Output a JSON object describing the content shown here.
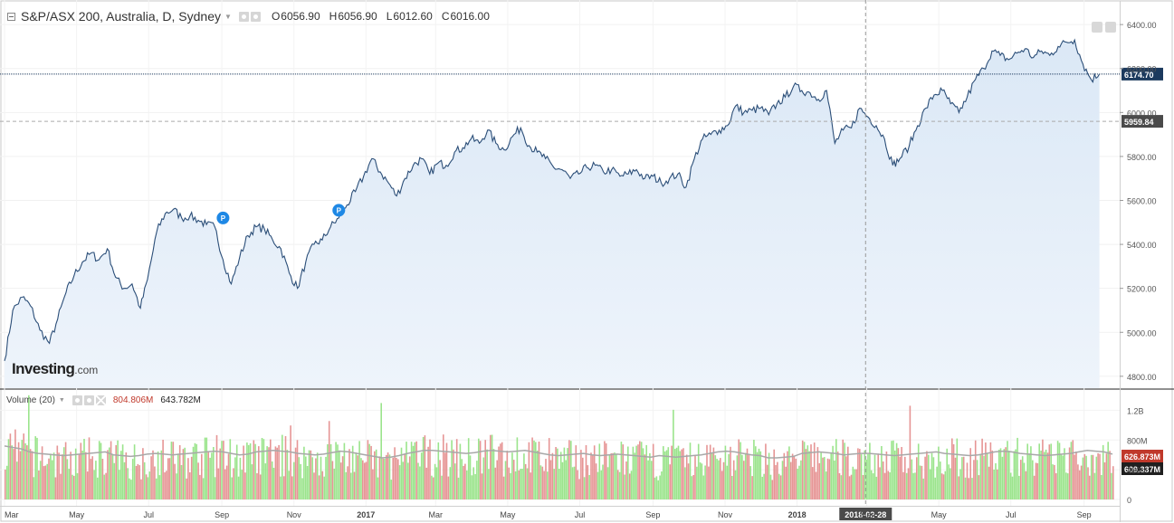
{
  "header": {
    "title": "S&P/ASX 200, Australia, D, Sydney",
    "open_label": "O",
    "open": "6056.90",
    "high_label": "H",
    "high": "6056.90",
    "low_label": "L",
    "low": "6012.60",
    "close_label": "C",
    "close": "6016.00"
  },
  "volume_header": {
    "title": "Volume (20)",
    "value": "804.806M",
    "ma_value": "643.782M"
  },
  "logo": {
    "brand": "Investing",
    "suffix": ".com"
  },
  "colors": {
    "line": "#2b4e78",
    "area_top": "#dbe8f6",
    "area_bottom": "#eef4fb",
    "vol_up": "#9be48c",
    "vol_down": "#e69595",
    "vol_ma": "#a8a8a8",
    "last_price_bg": "#1c3a5e",
    "crosshair_bg": "#4a4a4a"
  },
  "chart_data": [
    {
      "type": "line",
      "title": "S&P/ASX 200, Australia, D, Sydney",
      "x": [
        "2016-03-01",
        "2016-03-08",
        "2016-03-16",
        "2016-03-23",
        "2016-03-31",
        "2016-04-08",
        "2016-04-15",
        "2016-04-22",
        "2016-04-29",
        "2016-05-06",
        "2016-05-13",
        "2016-05-20",
        "2016-05-27",
        "2016-06-03",
        "2016-06-10",
        "2016-06-17",
        "2016-06-24",
        "2016-06-30",
        "2016-07-08",
        "2016-07-15",
        "2016-07-22",
        "2016-07-29",
        "2016-08-05",
        "2016-08-12",
        "2016-08-19",
        "2016-08-26",
        "2016-09-02",
        "2016-09-09",
        "2016-09-16",
        "2016-09-23",
        "2016-09-30",
        "2016-10-07",
        "2016-10-14",
        "2016-10-21",
        "2016-10-28",
        "2016-11-04",
        "2016-11-11",
        "2016-11-18",
        "2016-11-25",
        "2016-12-02",
        "2016-12-09",
        "2016-12-16",
        "2016-12-23",
        "2016-12-30",
        "2017-01-06",
        "2017-01-13",
        "2017-01-20",
        "2017-01-27",
        "2017-02-03",
        "2017-02-10",
        "2017-02-17",
        "2017-02-24",
        "2017-03-03",
        "2017-03-10",
        "2017-03-17",
        "2017-03-24",
        "2017-03-31",
        "2017-04-07",
        "2017-04-14",
        "2017-04-21",
        "2017-04-28",
        "2017-05-05",
        "2017-05-12",
        "2017-05-19",
        "2017-05-26",
        "2017-06-02",
        "2017-06-09",
        "2017-06-16",
        "2017-06-23",
        "2017-06-30",
        "2017-07-07",
        "2017-07-14",
        "2017-07-21",
        "2017-07-28",
        "2017-08-04",
        "2017-08-11",
        "2017-08-18",
        "2017-08-25",
        "2017-09-01",
        "2017-09-08",
        "2017-09-15",
        "2017-09-22",
        "2017-09-29",
        "2017-10-06",
        "2017-10-13",
        "2017-10-20",
        "2017-10-27",
        "2017-11-03",
        "2017-11-10",
        "2017-11-17",
        "2017-11-24",
        "2017-12-01",
        "2017-12-08",
        "2017-12-15",
        "2017-12-22",
        "2017-12-29",
        "2018-01-05",
        "2018-01-12",
        "2018-01-19",
        "2018-01-26",
        "2018-02-02",
        "2018-02-09",
        "2018-02-16",
        "2018-02-23",
        "2018-03-02",
        "2018-03-09",
        "2018-03-16",
        "2018-03-23",
        "2018-03-29",
        "2018-04-06",
        "2018-04-13",
        "2018-04-20",
        "2018-04-27",
        "2018-05-04",
        "2018-05-11",
        "2018-05-18",
        "2018-05-25",
        "2018-06-01",
        "2018-06-08",
        "2018-06-15",
        "2018-06-22",
        "2018-06-29",
        "2018-07-06",
        "2018-07-13",
        "2018-07-20",
        "2018-07-27",
        "2018-08-03",
        "2018-08-10",
        "2018-08-17",
        "2018-08-24",
        "2018-08-31",
        "2018-09-07",
        "2018-09-14"
      ],
      "y": [
        4870,
        5100,
        5160,
        5120,
        5010,
        4950,
        5060,
        5180,
        5260,
        5320,
        5360,
        5330,
        5380,
        5250,
        5200,
        5220,
        5110,
        5240,
        5460,
        5540,
        5560,
        5520,
        5530,
        5510,
        5490,
        5480,
        5330,
        5220,
        5340,
        5440,
        5480,
        5470,
        5420,
        5380,
        5270,
        5200,
        5320,
        5400,
        5420,
        5480,
        5520,
        5580,
        5640,
        5710,
        5790,
        5730,
        5680,
        5620,
        5700,
        5760,
        5790,
        5720,
        5770,
        5760,
        5820,
        5840,
        5880,
        5860,
        5920,
        5860,
        5830,
        5890,
        5930,
        5850,
        5820,
        5790,
        5750,
        5740,
        5700,
        5720,
        5750,
        5760,
        5730,
        5740,
        5710,
        5720,
        5740,
        5700,
        5710,
        5680,
        5700,
        5720,
        5660,
        5790,
        5880,
        5900,
        5920,
        5940,
        6030,
        6000,
        6010,
        6020,
        5990,
        6040,
        6070,
        6120,
        6100,
        6090,
        6060,
        6100,
        5860,
        5920,
        5930,
        6020,
        5980,
        5940,
        5880,
        5760,
        5790,
        5850,
        5940,
        6020,
        6080,
        6100,
        6040,
        6000,
        6070,
        6150,
        6200,
        6280,
        6260,
        6240,
        6270,
        6290,
        6250,
        6280,
        6260,
        6300,
        6320,
        6330,
        6220,
        6150,
        6175
      ],
      "ylim": [
        4750,
        6450
      ],
      "yticks": [
        "6400.00",
        "6200.00",
        "6000.00",
        "5800.00",
        "5600.00",
        "5400.00",
        "5200.00",
        "5000.00",
        "4800.00"
      ],
      "last_price": "6174.70",
      "cursor_price": "5959.84",
      "markers": [
        {
          "label": "P",
          "x": "2016-09-02",
          "y": 5520
        },
        {
          "label": "P",
          "x": "2016-12-09",
          "y": 5555
        }
      ]
    },
    {
      "type": "bar",
      "title": "Volume (20)",
      "yticks": [
        "1.2B",
        "800M",
        "400M",
        "0"
      ],
      "ylim": [
        0,
        1400
      ],
      "unit": "M",
      "volume_last": "626.873M",
      "volume_ma_last": "609.337M",
      "ma_series": [
        720,
        700,
        680,
        640,
        620,
        610,
        600,
        590,
        600,
        610,
        620,
        630,
        640,
        600,
        590,
        580,
        590,
        610,
        620,
        610,
        600,
        610,
        620,
        630,
        640,
        650,
        640,
        620,
        600,
        610,
        640,
        650,
        660,
        650,
        640,
        620,
        610,
        600,
        610,
        630,
        650,
        640,
        620,
        600,
        580,
        560,
        570,
        590,
        620,
        640,
        660,
        660,
        650,
        640,
        630,
        620,
        630,
        650,
        660,
        650,
        640,
        650,
        660,
        640,
        620,
        600,
        590,
        600,
        610,
        620,
        600,
        590,
        600,
        610,
        600,
        590,
        580,
        570,
        590,
        580,
        570,
        580,
        590,
        600,
        620,
        640,
        650,
        640,
        620,
        600,
        590,
        560,
        560,
        570,
        580,
        620,
        630,
        640,
        630,
        620,
        600,
        610,
        620,
        620,
        610,
        600,
        590,
        600,
        610,
        620,
        630,
        640,
        620,
        610,
        600,
        590,
        600,
        620,
        640,
        650,
        640,
        620,
        610,
        600,
        590,
        600,
        610,
        620,
        640,
        660,
        650,
        640,
        610
      ]
    }
  ],
  "x_axis": {
    "labels": [
      "Mar",
      "May",
      "Jul",
      "Sep",
      "Nov",
      "2017",
      "Mar",
      "May",
      "Jul",
      "Sep",
      "Nov",
      "2018",
      "Mar",
      "May",
      "Jul",
      "Sep"
    ],
    "cursor_label": "2018-02-28"
  }
}
